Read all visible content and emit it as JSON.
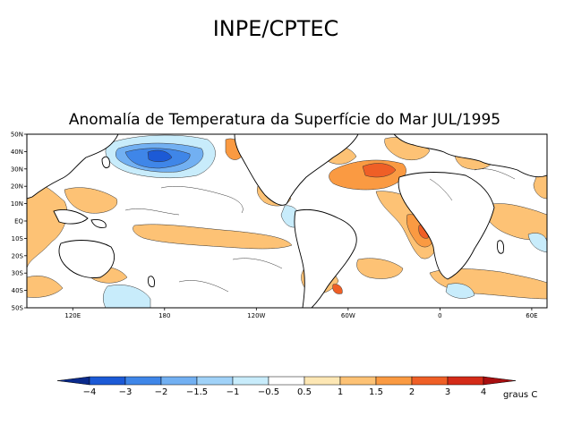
{
  "header": {
    "title": "INPE/CPTEC",
    "subtitle": "Anomalía de Temperatura da Superfície do Mar JUL/1995"
  },
  "map": {
    "lat_labels": [
      "50N",
      "40N",
      "30N",
      "20N",
      "10N",
      "EQ",
      "10S",
      "20S",
      "30S",
      "40S",
      "50S"
    ],
    "lon_labels": [
      "120E",
      "180",
      "120W",
      "60W",
      "0",
      "60E"
    ]
  },
  "legend": {
    "unit": "graus C",
    "values": [
      "-4",
      "-3",
      "-2",
      "-1.5",
      "-1",
      "-0.5",
      "0.5",
      "1",
      "1.5",
      "2",
      "3",
      "4"
    ],
    "colors": [
      "#0a2a8c",
      "#1c5ad6",
      "#3f86e8",
      "#72b0f2",
      "#a0d2f8",
      "#c8ecfb",
      "#ffffff",
      "#fde7b4",
      "#fdc275",
      "#fa9a42",
      "#ef5f26",
      "#d42b18",
      "#a80f10"
    ]
  }
}
